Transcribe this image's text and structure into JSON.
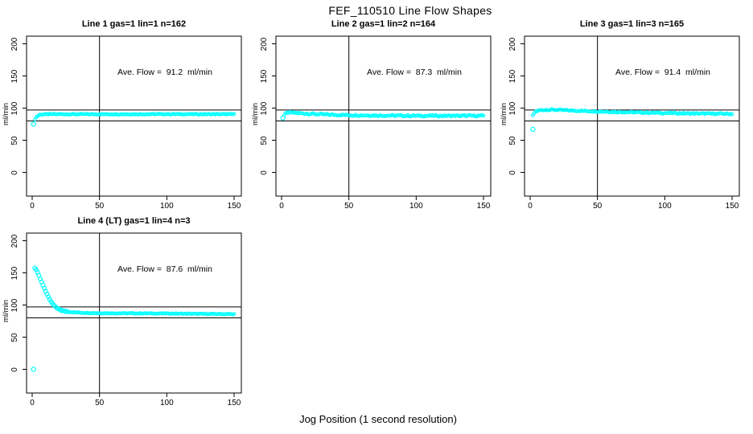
{
  "chart_data": {
    "type": "scatter",
    "title": "FEF_110510  Line Flow Shapes",
    "xlabel": "Jog Position (1 second resolution)",
    "ylabel": "ml/min",
    "x_ticks": [
      0,
      50,
      100,
      150
    ],
    "y_ticks": [
      0,
      50,
      100,
      150,
      200
    ],
    "xlim": [
      -6,
      156
    ],
    "ylim": [
      -37,
      212
    ],
    "grid": "off",
    "point_color": "#00FFFF",
    "axis_color": "#000000",
    "background_color": "#FFFFFF",
    "ref_lines": {
      "horizontal_y": [
        97,
        80
      ],
      "vertical_x": [
        50
      ]
    },
    "panels": [
      {
        "title": "Line 1 gas=1 lin=1 n=162",
        "ave_flow_label": "Ave. Flow =  91.2  ml/min",
        "ave_flow": 91.2,
        "outliers": [
          [
            1,
            75
          ]
        ],
        "jitter": 1.4,
        "curve": [
          [
            2,
            83
          ],
          [
            3,
            85.5
          ],
          [
            4,
            87.5
          ],
          [
            5,
            89
          ],
          [
            6,
            89.8
          ],
          [
            8,
            90.3
          ],
          [
            15,
            90.5
          ],
          [
            50,
            90.5
          ],
          [
            100,
            90.6
          ],
          [
            150,
            90.5
          ]
        ]
      },
      {
        "title": "Line 2 gas=1 lin=2 n=164",
        "ave_flow_label": "Ave. Flow =  87.3  ml/min",
        "ave_flow": 87.3,
        "outliers": [
          [
            1,
            84.5
          ]
        ],
        "jitter": 2.4,
        "curve": [
          [
            2,
            89
          ],
          [
            3,
            91
          ],
          [
            4,
            92.3
          ],
          [
            5,
            92.8
          ],
          [
            7,
            93
          ],
          [
            10,
            92.5
          ],
          [
            15,
            91.8
          ],
          [
            20,
            91.2
          ],
          [
            30,
            90.2
          ],
          [
            40,
            89.5
          ],
          [
            60,
            88.8
          ],
          [
            80,
            88.3
          ],
          [
            100,
            88
          ],
          [
            150,
            88
          ]
        ]
      },
      {
        "title": "Line 3 gas=1 lin=3 n=165",
        "ave_flow_label": "Ave. Flow =  91.4  ml/min",
        "ave_flow": 91.4,
        "outliers": [
          [
            2,
            67
          ]
        ],
        "jitter": 2.0,
        "curve": [
          [
            2,
            88
          ],
          [
            3,
            92
          ],
          [
            4,
            94.5
          ],
          [
            6,
            96
          ],
          [
            8,
            96.8
          ],
          [
            12,
            97.3
          ],
          [
            15,
            97.4
          ],
          [
            20,
            97.2
          ],
          [
            30,
            96.3
          ],
          [
            40,
            95.5
          ],
          [
            50,
            94.8
          ],
          [
            60,
            94.2
          ],
          [
            80,
            93.2
          ],
          [
            100,
            92.3
          ],
          [
            120,
            91.6
          ],
          [
            150,
            91
          ]
        ]
      },
      {
        "title": "Line 4 (LT) gas=1 lin=4 n=3",
        "ave_flow_label": "Ave. Flow =  87.6  ml/min",
        "ave_flow": 87.6,
        "outliers": [
          [
            1,
            0
          ]
        ],
        "jitter": 1.2,
        "curve": [
          [
            2,
            157.5
          ],
          [
            3,
            155
          ],
          [
            4,
            151
          ],
          [
            5,
            146
          ],
          [
            6,
            141
          ],
          [
            7,
            136
          ],
          [
            8,
            131
          ],
          [
            9,
            126
          ],
          [
            10,
            121.5
          ],
          [
            11,
            117
          ],
          [
            12,
            113
          ],
          [
            13,
            109
          ],
          [
            14,
            105.5
          ],
          [
            15,
            102.5
          ],
          [
            16,
            100
          ],
          [
            17,
            97.8
          ],
          [
            18,
            96
          ],
          [
            19,
            94.5
          ],
          [
            20,
            93.2
          ],
          [
            22,
            91.5
          ],
          [
            25,
            90
          ],
          [
            30,
            88.8
          ],
          [
            35,
            88.2
          ],
          [
            40,
            87.8
          ],
          [
            50,
            87.4
          ],
          [
            60,
            87.2
          ],
          [
            80,
            87
          ],
          [
            100,
            86.8
          ],
          [
            120,
            86.3
          ],
          [
            150,
            85.8
          ]
        ]
      }
    ]
  }
}
